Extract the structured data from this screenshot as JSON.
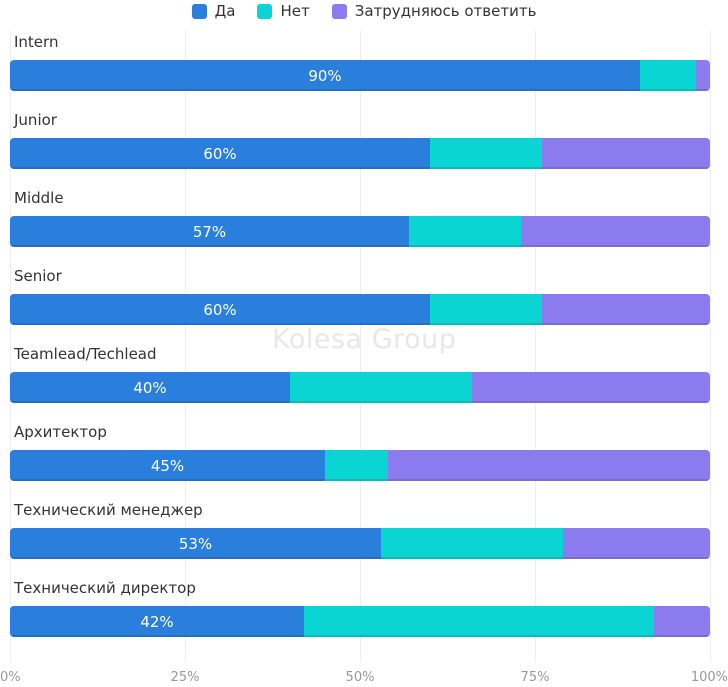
{
  "colors": {
    "yes": "#2b7fdc",
    "no": "#0bd5d3",
    "unsure": "#8b7bef",
    "grid": "#eeeeee",
    "tick": "#999999",
    "category_label": "#333333"
  },
  "watermark": "Kolesa Group",
  "chart_data": {
    "type": "bar",
    "orientation": "horizontal",
    "stacked": true,
    "title": "",
    "xlabel": "",
    "ylabel": "",
    "xlim": [
      0,
      100
    ],
    "x_ticks": [
      "0%",
      "25%",
      "50%",
      "75%",
      "100%"
    ],
    "x_tick_values": [
      0,
      25,
      50,
      75,
      100
    ],
    "grid": true,
    "legend_position": "top-center",
    "categories": [
      "Intern",
      "Junior",
      "Middle",
      "Senior",
      "Teamlead/Techlead",
      "Архитектор",
      "Технический менеджер",
      "Технический директор"
    ],
    "series": [
      {
        "name": "Да",
        "key": "yes",
        "values": [
          90,
          60,
          57,
          60,
          40,
          45,
          53,
          42
        ]
      },
      {
        "name": "Нет",
        "key": "no",
        "values": [
          8,
          16,
          16,
          16,
          26,
          9,
          26,
          50
        ]
      },
      {
        "name": "Затрудняюсь ответить",
        "key": "unsure",
        "values": [
          2,
          24,
          27,
          24,
          34,
          46,
          21,
          8
        ]
      }
    ],
    "data_labels": [
      "90%",
      "60%",
      "57%",
      "60%",
      "40%",
      "45%",
      "53%",
      "42%"
    ]
  }
}
